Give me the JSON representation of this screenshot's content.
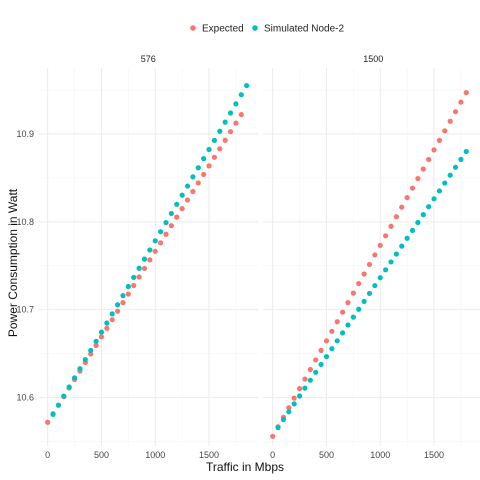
{
  "chart_data": {
    "type": "scatter",
    "xlabel": "Traffic in Mbps",
    "ylabel": "Power Consumption in Watt",
    "x_ticks": [
      "0",
      "500",
      "1000",
      "1500"
    ],
    "y_ticks": [
      "10.6",
      "10.7",
      "10.8",
      "10.9"
    ],
    "xlim": [
      -90,
      1960
    ],
    "ylim": [
      10.545,
      10.975
    ],
    "grid": true,
    "legend_position": "top",
    "legend": [
      {
        "label": "Expected",
        "color": "#F8766D"
      },
      {
        "label": "Simulated Node-2",
        "color": "#00BFC4"
      }
    ],
    "facets": [
      {
        "title": "576",
        "series": [
          {
            "name": "Expected",
            "color": "#F8766D",
            "x_start": 0,
            "x_step": 50,
            "count": 37,
            "y_start": 10.572,
            "y_end": 10.922
          },
          {
            "name": "Simulated Node-2",
            "color": "#00BFC4",
            "x_start": 50,
            "x_step": 50,
            "count": 37,
            "y_start": 10.581,
            "y_end": 10.955
          }
        ]
      },
      {
        "title": "1500",
        "series": [
          {
            "name": "Expected",
            "color": "#F8766D",
            "x_start": 0,
            "x_step": 50,
            "count": 37,
            "y_start": 10.556,
            "y_end": 10.947
          },
          {
            "name": "Simulated Node-2",
            "color": "#00BFC4",
            "x_start": 50,
            "x_step": 50,
            "count": 36,
            "y_start": 10.566,
            "y_end": 10.88
          }
        ]
      }
    ]
  }
}
